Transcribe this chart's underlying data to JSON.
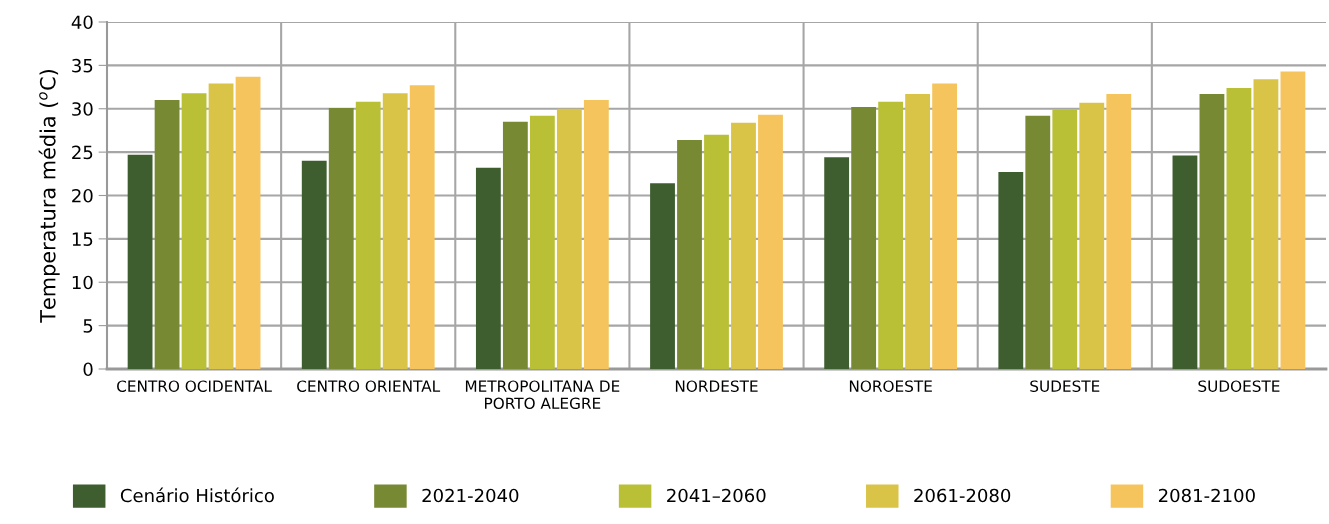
{
  "chart_data": {
    "type": "bar",
    "ylabel": "Temperatura média ($^{o}$C)",
    "categories": [
      "CENTRO OCIDENTAL",
      "CENTRO ORIENTAL",
      "METROPOLITANA DE\nPORTO ALEGRE",
      "NORDESTE",
      "NOROESTE",
      "SUDESTE",
      "SUDOESTE"
    ],
    "series": [
      {
        "name": "Cenário Histórico",
        "color": "#3f5e2f",
        "values": [
          24.7,
          24.0,
          23.2,
          21.4,
          24.4,
          22.7,
          24.6
        ]
      },
      {
        "name": "2021-2040",
        "color": "#788933",
        "values": [
          31.0,
          30.1,
          28.5,
          26.4,
          30.2,
          29.2,
          31.7
        ]
      },
      {
        "name": "2041–2060",
        "color": "#b9c035",
        "values": [
          31.8,
          30.8,
          29.2,
          27.0,
          30.8,
          29.9,
          32.4
        ]
      },
      {
        "name": "2061-2080",
        "color": "#d9c447",
        "values": [
          32.9,
          31.8,
          30.0,
          28.4,
          31.7,
          30.7,
          33.4
        ]
      },
      {
        "name": "2081-2100",
        "color": "#f5c45c",
        "values": [
          33.7,
          32.7,
          31.0,
          29.3,
          32.9,
          31.7,
          34.3
        ]
      }
    ],
    "ylim": [
      0,
      40
    ],
    "yticks": [
      0,
      5,
      10,
      15,
      20,
      25,
      30,
      35,
      40
    ],
    "grid": true,
    "legend": "bottom"
  }
}
